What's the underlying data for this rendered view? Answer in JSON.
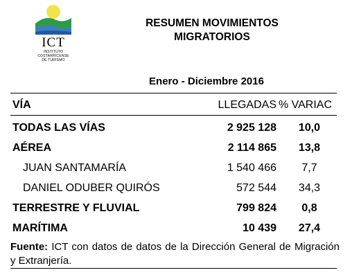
{
  "logo": {
    "brand": "ICT",
    "line1": "INSTITUTO",
    "line2": "COSTARRICENSE",
    "line3": "DE TURISMO",
    "colors": {
      "sun": "#f2e34a",
      "land": "#2c9c4a",
      "sea": "#3c7fc1",
      "sky": "#1f5aa6"
    }
  },
  "title": {
    "line1": "RESUMEN MOVIMIENTOS",
    "line2": "MIGRATORIOS"
  },
  "period": "Enero - Diciembre 2016",
  "table": {
    "headers": {
      "via": "VÍA",
      "llegadas": "LLEGADAS",
      "variacion": "% VARIAC"
    },
    "rows": [
      {
        "via": "TODAS LAS VÍAS",
        "llegadas": "2 925 128",
        "variacion": "10,0"
      },
      {
        "via": "AÉREA",
        "llegadas": "2 114 865",
        "variacion": "13,8"
      },
      {
        "via": "JUAN SANTAMARÍA",
        "llegadas": "1 540 466",
        "variacion": "7,7"
      },
      {
        "via": "DANIEL ODUBER QUIRÓS",
        "llegadas": "572 544",
        "variacion": "34,3"
      },
      {
        "via": "TERRESTRE Y FLUVIAL",
        "llegadas": "799 824",
        "variacion": "0,8"
      },
      {
        "via": "MARÍTIMA",
        "llegadas": "10 439",
        "variacion": "27,4"
      }
    ]
  },
  "source": {
    "label": "Fuente:",
    "text": " ICT con datos de datos de la Dirección General de Migración y Extranjería."
  }
}
